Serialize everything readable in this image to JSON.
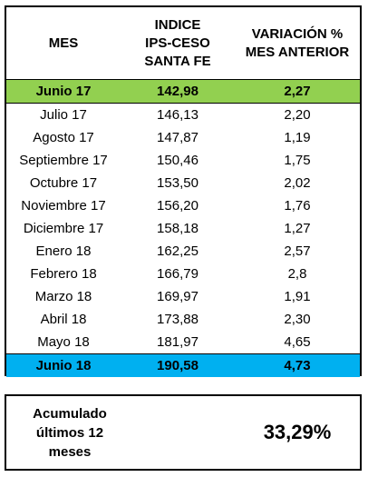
{
  "table": {
    "headers": [
      "MES",
      "INDICE\nIPS-CESO\nSANTA FE",
      "VARIACIÓN %\nMES ANTERIOR"
    ],
    "rows": [
      [
        "Junio 17",
        "142,98",
        "2,27"
      ],
      [
        "Julio 17",
        "146,13",
        "2,20"
      ],
      [
        "Agosto 17",
        "147,87",
        "1,19"
      ],
      [
        "Septiembre 17",
        "150,46",
        "1,75"
      ],
      [
        "Octubre 17",
        "153,50",
        "2,02"
      ],
      [
        "Noviembre 17",
        "156,20",
        "1,76"
      ],
      [
        "Diciembre 17",
        "158,18",
        "1,27"
      ],
      [
        "Enero 18",
        "162,25",
        "2,57"
      ],
      [
        "Febrero 18",
        "166,79",
        "2,8"
      ],
      [
        "Marzo 18",
        "169,97",
        "1,91"
      ],
      [
        "Abril 18",
        "173,88",
        "2,30"
      ],
      [
        "Mayo 18",
        "181,97",
        "4,65"
      ],
      [
        "Junio 18",
        "190,58",
        "4,73"
      ]
    ],
    "highlight_colors": {
      "first_row": "#92d050",
      "last_row": "#00b0f0"
    }
  },
  "summary": {
    "label": "Acumulado\núltimos 12\nmeses",
    "value": "33,29%"
  }
}
